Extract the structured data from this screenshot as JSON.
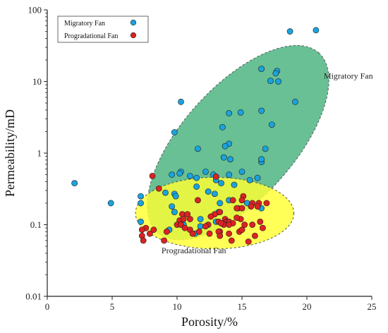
{
  "chart_data": {
    "type": "scatter",
    "xlabel": "Porosity/%",
    "ylabel": "Permeability/mD",
    "xlim": [
      0,
      25
    ],
    "ylim": [
      0.01,
      100
    ],
    "yscale": "log",
    "grid": false,
    "legend_placement": "top-left",
    "x_ticks": [
      "0",
      "5",
      "10",
      "15",
      "20",
      "25"
    ],
    "y_ticks": [
      "0.01",
      "0.1",
      "1",
      "10",
      "100"
    ],
    "series": [
      {
        "name": "Migratory Fan",
        "color": "#1aa3dd",
        "points": [
          [
            20.7,
            52
          ],
          [
            18.7,
            50
          ],
          [
            17.7,
            14
          ],
          [
            17.6,
            13
          ],
          [
            17.8,
            10
          ],
          [
            17.2,
            10.2
          ],
          [
            16.5,
            15
          ],
          [
            19.1,
            5.2
          ],
          [
            17.3,
            2.5
          ],
          [
            16.5,
            3.9
          ],
          [
            14.9,
            3.7
          ],
          [
            14.0,
            3.6
          ],
          [
            13.5,
            2.3
          ],
          [
            10.3,
            5.2
          ],
          [
            9.8,
            1.95
          ],
          [
            11.6,
            1.15
          ],
          [
            14.0,
            1.35
          ],
          [
            13.7,
            1.25
          ],
          [
            13.6,
            0.87
          ],
          [
            14.1,
            0.82
          ],
          [
            16.8,
            1.15
          ],
          [
            16.5,
            0.75
          ],
          [
            16.5,
            0.82
          ],
          [
            10.3,
            0.55
          ],
          [
            10.2,
            0.52
          ],
          [
            9.6,
            0.5
          ],
          [
            11.0,
            0.48
          ],
          [
            11.5,
            0.45
          ],
          [
            13.0,
            0.42
          ],
          [
            12.2,
            0.55
          ],
          [
            12.8,
            0.5
          ],
          [
            14.0,
            0.5
          ],
          [
            15.0,
            0.55
          ],
          [
            15.6,
            0.42
          ],
          [
            16.2,
            0.45
          ],
          [
            14.4,
            0.36
          ],
          [
            11.5,
            0.34
          ],
          [
            12.9,
            0.27
          ],
          [
            12.4,
            0.29
          ],
          [
            9.1,
            0.28
          ],
          [
            9.8,
            0.27
          ],
          [
            9.9,
            0.25
          ],
          [
            13.4,
            0.38
          ],
          [
            7.2,
            0.25
          ],
          [
            7.2,
            0.2
          ],
          [
            9.8,
            0.15
          ],
          [
            9.6,
            0.18
          ],
          [
            13.3,
            0.2
          ],
          [
            11.8,
            0.12
          ],
          [
            14.7,
            0.17
          ],
          [
            16.5,
            0.17
          ],
          [
            14.0,
            0.22
          ],
          [
            15.4,
            0.2
          ],
          [
            13.2,
            0.15
          ],
          [
            10.5,
            0.1
          ],
          [
            9.4,
            0.085
          ],
          [
            7.2,
            0.11
          ],
          [
            11.4,
            0.075
          ],
          [
            13.0,
            0.11
          ],
          [
            11.8,
            0.095
          ],
          [
            2.1,
            0.38
          ],
          [
            4.9,
            0.2
          ]
        ]
      },
      {
        "name": "Progradational Fan",
        "color": "#dd2222",
        "points": [
          [
            8.1,
            0.48
          ],
          [
            13.0,
            0.47
          ],
          [
            8.6,
            0.32
          ],
          [
            11.6,
            0.22
          ],
          [
            14.3,
            0.22
          ],
          [
            15.1,
            0.25
          ],
          [
            15.0,
            0.22
          ],
          [
            16.3,
            0.2
          ],
          [
            16.9,
            0.2
          ],
          [
            15.8,
            0.2
          ],
          [
            15.7,
            0.18
          ],
          [
            16.2,
            0.18
          ],
          [
            15.0,
            0.17
          ],
          [
            14.6,
            0.17
          ],
          [
            13.3,
            0.15
          ],
          [
            12.9,
            0.14
          ],
          [
            12.6,
            0.13
          ],
          [
            10.4,
            0.14
          ],
          [
            10.8,
            0.14
          ],
          [
            11.0,
            0.12
          ],
          [
            10.2,
            0.115
          ],
          [
            10.5,
            0.12
          ],
          [
            14.9,
            0.12
          ],
          [
            14.6,
            0.125
          ],
          [
            13.7,
            0.12
          ],
          [
            13.8,
            0.11
          ],
          [
            13.6,
            0.1
          ],
          [
            13.2,
            0.11
          ],
          [
            13.4,
            0.105
          ],
          [
            14.0,
            0.11
          ],
          [
            14.3,
            0.105
          ],
          [
            14.0,
            0.1
          ],
          [
            15.2,
            0.1
          ],
          [
            15.8,
            0.1
          ],
          [
            16.4,
            0.11
          ],
          [
            12.4,
            0.1
          ],
          [
            12.2,
            0.095
          ],
          [
            10.0,
            0.1
          ],
          [
            10.3,
            0.1
          ],
          [
            10.6,
            0.09
          ],
          [
            11.0,
            0.085
          ],
          [
            11.2,
            0.075
          ],
          [
            9.2,
            0.08
          ],
          [
            13.3,
            0.08
          ],
          [
            13.2,
            0.08
          ],
          [
            14.0,
            0.075
          ],
          [
            14.8,
            0.08
          ],
          [
            15.0,
            0.085
          ],
          [
            16.6,
            0.09
          ],
          [
            16.0,
            0.07
          ],
          [
            7.6,
            0.09
          ],
          [
            7.3,
            0.085
          ],
          [
            7.3,
            0.07
          ],
          [
            7.4,
            0.06
          ],
          [
            7.9,
            0.075
          ],
          [
            8.2,
            0.085
          ],
          [
            9.0,
            0.06
          ],
          [
            13.3,
            0.07
          ],
          [
            12.5,
            0.075
          ],
          [
            11.7,
            0.08
          ],
          [
            14.2,
            0.06
          ],
          [
            15.5,
            0.058
          ]
        ]
      }
    ],
    "annotations": [
      {
        "text": "Migratory Fan",
        "x": 21.3,
        "y": 11
      },
      {
        "text": "Progradational Fan",
        "x": 8.8,
        "y": 0.04
      }
    ],
    "regions": [
      {
        "name": "Migratory Fan",
        "color": "#2ea86b",
        "center": [
          14.7,
          1.4
        ],
        "rx_porosity": 9.3,
        "ry_logdecades": 0.78,
        "rotation_deg": 48
      },
      {
        "name": "Progradational Fan",
        "color": "#ffff33",
        "center": [
          12.9,
          0.145
        ],
        "rx_porosity": 6.1,
        "ry_logdecades": 0.5,
        "rotation_deg": 0
      }
    ]
  }
}
